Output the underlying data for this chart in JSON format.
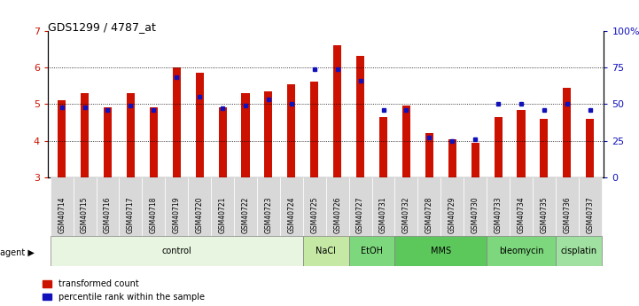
{
  "title": "GDS1299 / 4787_at",
  "samples": [
    "GSM40714",
    "GSM40715",
    "GSM40716",
    "GSM40717",
    "GSM40718",
    "GSM40719",
    "GSM40720",
    "GSM40721",
    "GSM40722",
    "GSM40723",
    "GSM40724",
    "GSM40725",
    "GSM40726",
    "GSM40727",
    "GSM40731",
    "GSM40732",
    "GSM40728",
    "GSM40729",
    "GSM40730",
    "GSM40733",
    "GSM40734",
    "GSM40735",
    "GSM40736",
    "GSM40737"
  ],
  "red_values": [
    5.1,
    5.3,
    4.9,
    5.3,
    4.9,
    6.0,
    5.85,
    4.9,
    5.3,
    5.35,
    5.55,
    5.6,
    6.6,
    6.3,
    4.65,
    4.95,
    4.2,
    4.05,
    3.95,
    4.65,
    4.85,
    4.6,
    5.45,
    4.6
  ],
  "blue_values": [
    48,
    48,
    46,
    49,
    46,
    68,
    55,
    47,
    49,
    53,
    50,
    74,
    74,
    66,
    46,
    46,
    27,
    25,
    26,
    50,
    50,
    46,
    50,
    46
  ],
  "agents": [
    {
      "label": "control",
      "start": 0,
      "end": 11,
      "color": "#e8f5e0"
    },
    {
      "label": "NaCl",
      "start": 11,
      "end": 13,
      "color": "#c5e8a5"
    },
    {
      "label": "EtOH",
      "start": 13,
      "end": 15,
      "color": "#7dd87d"
    },
    {
      "label": "MMS",
      "start": 15,
      "end": 19,
      "color": "#5cc85c"
    },
    {
      "label": "bleomycin",
      "start": 19,
      "end": 22,
      "color": "#7dd87d"
    },
    {
      "label": "cisplatin",
      "start": 22,
      "end": 24,
      "color": "#a0e0a0"
    }
  ],
  "ymin": 3,
  "ymax": 7,
  "yticks_left": [
    3,
    4,
    5,
    6,
    7
  ],
  "yticks_right_vals": [
    0,
    25,
    50,
    75,
    100
  ],
  "yticks_right_labels": [
    "0",
    "25",
    "50",
    "75",
    "100%"
  ],
  "bar_color": "#cc1100",
  "blue_color": "#1111bb",
  "bg_color": "#ffffff",
  "tick_label_bg": "#d8d8d8"
}
